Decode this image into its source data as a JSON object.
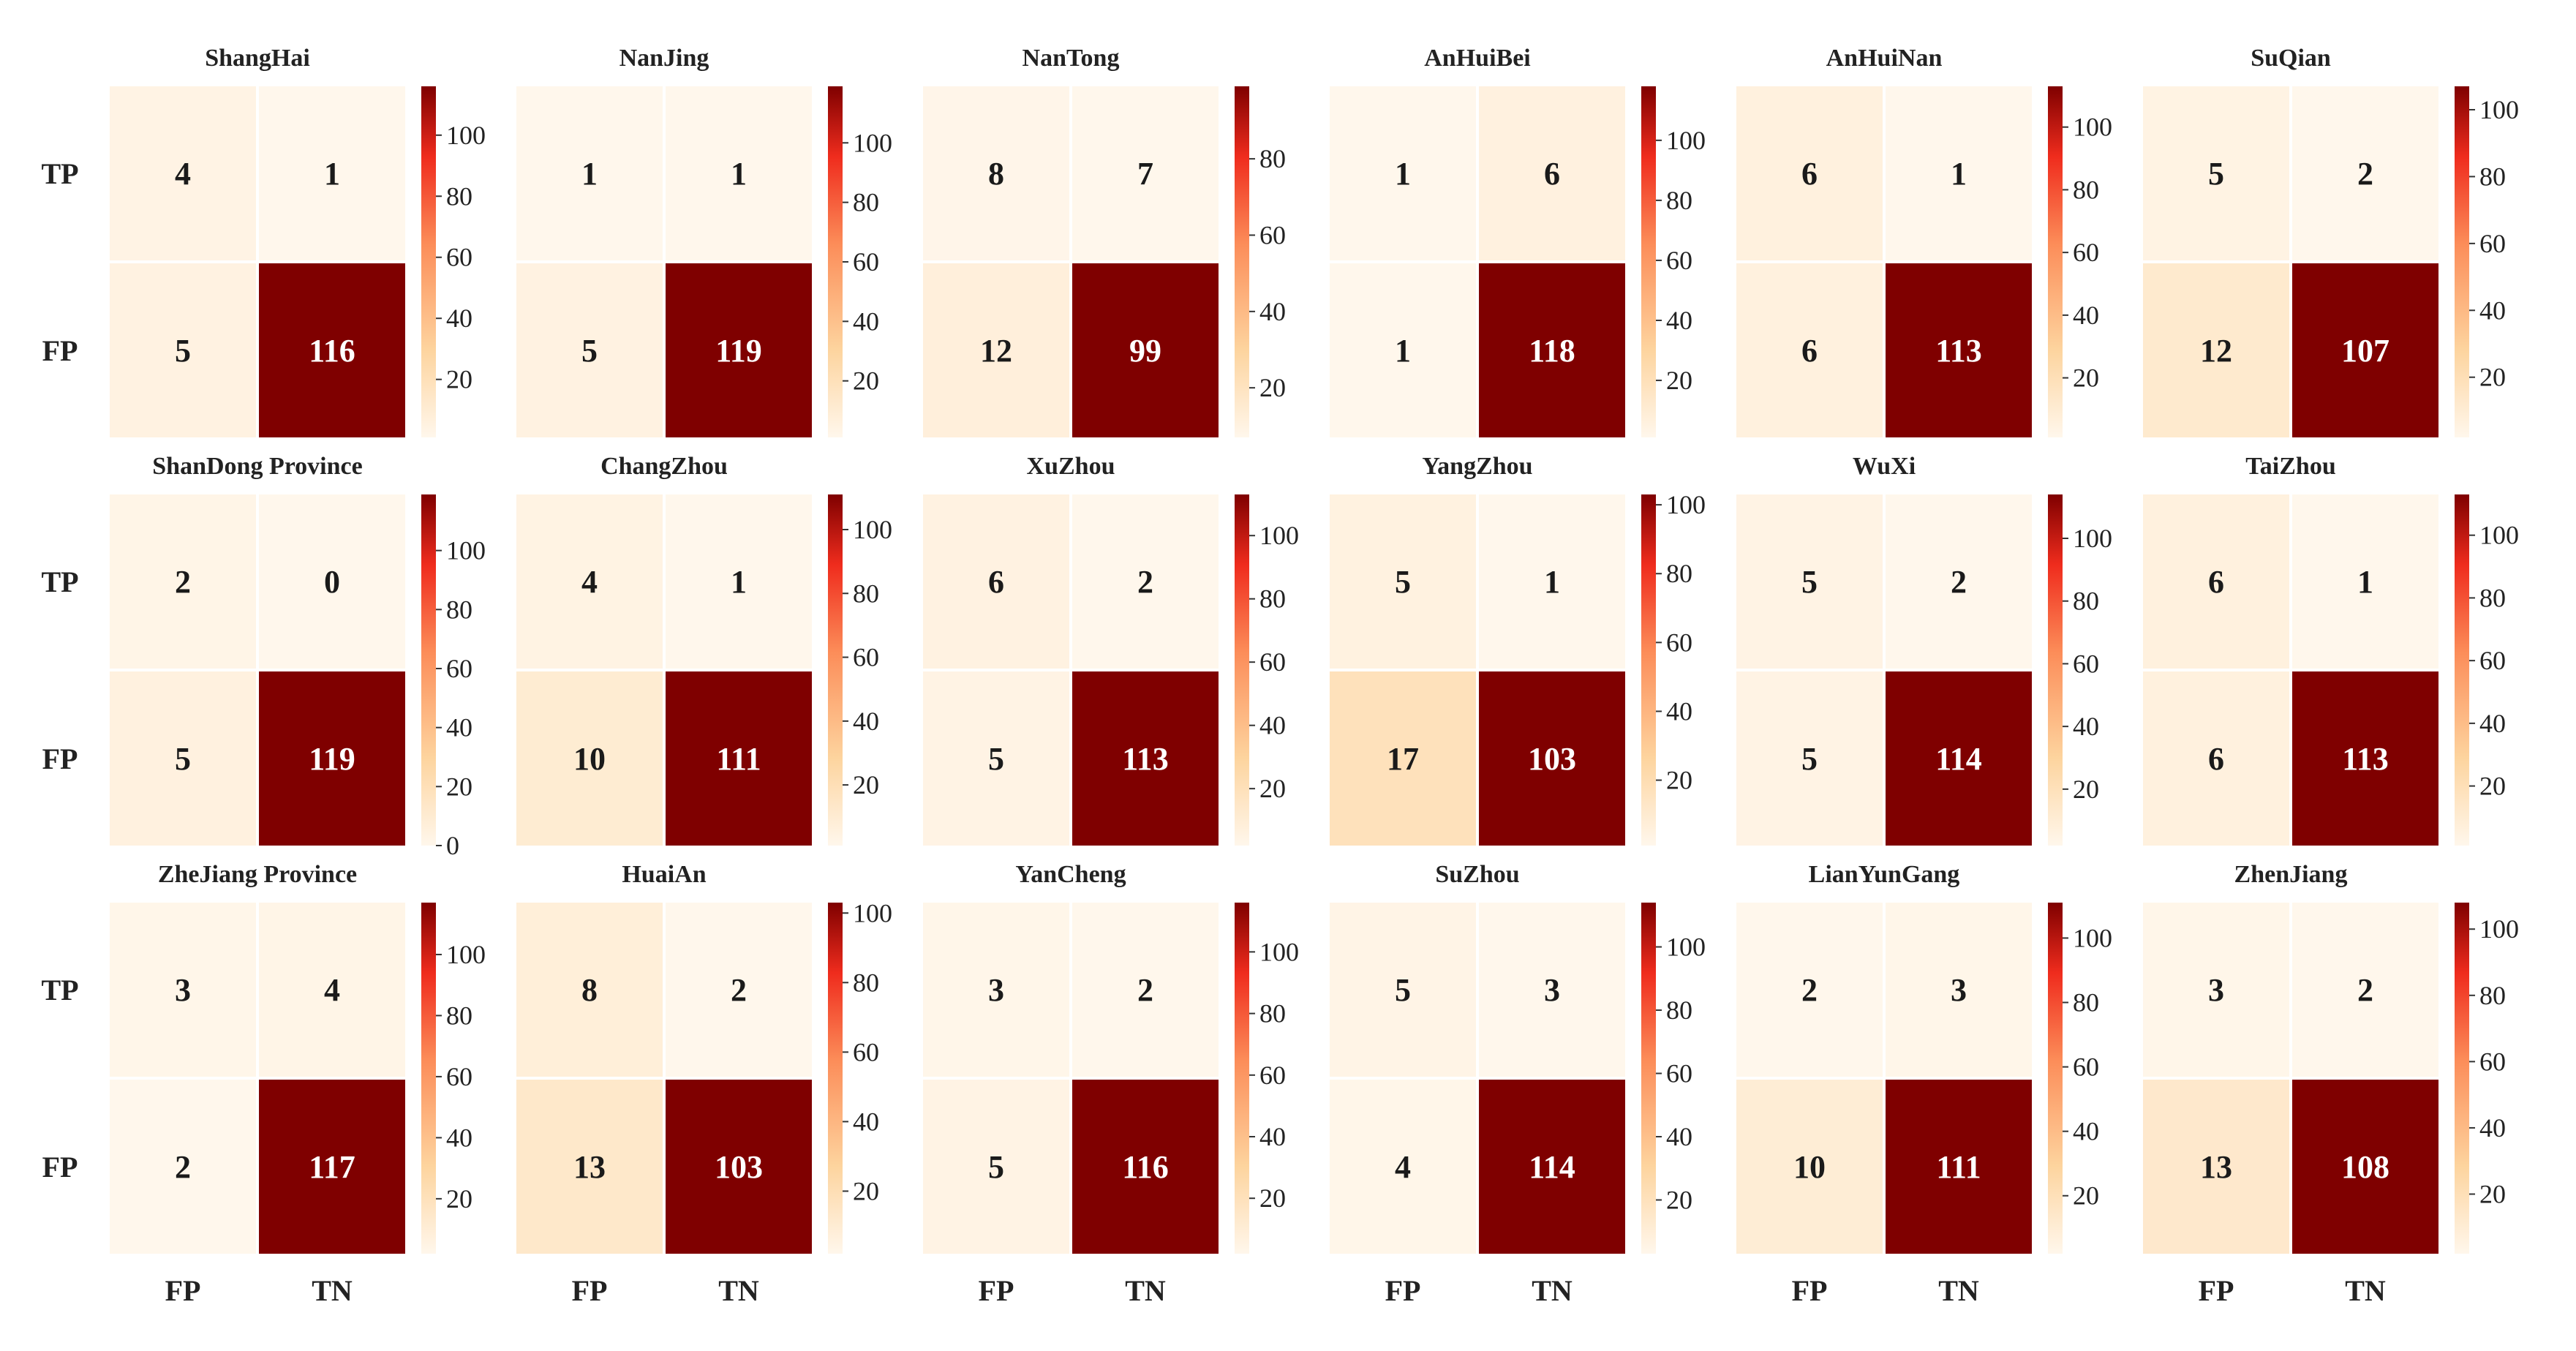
{
  "chart_data": {
    "type": "heatmap",
    "colormap": "OrRd (light cream to dark red)",
    "grid_rows": 3,
    "grid_cols": 6,
    "row_labels": [
      "TP",
      "FP"
    ],
    "col_labels": [
      "FP",
      "TN"
    ],
    "panels": [
      {
        "title": "ShangHai",
        "values": [
          [
            4,
            1
          ],
          [
            5,
            116
          ]
        ],
        "vmin": 1,
        "vmax": 116,
        "cbar_ticks": [
          20,
          40,
          60,
          80,
          100
        ]
      },
      {
        "title": "NanJing",
        "values": [
          [
            1,
            1
          ],
          [
            5,
            119
          ]
        ],
        "vmin": 1,
        "vmax": 119,
        "cbar_ticks": [
          20,
          40,
          60,
          80,
          100
        ]
      },
      {
        "title": "NanTong",
        "values": [
          [
            8,
            7
          ],
          [
            12,
            99
          ]
        ],
        "vmin": 7,
        "vmax": 99,
        "cbar_ticks": [
          20,
          40,
          60,
          80
        ]
      },
      {
        "title": "AnHuiBei",
        "values": [
          [
            1,
            6
          ],
          [
            1,
            118
          ]
        ],
        "vmin": 1,
        "vmax": 118,
        "cbar_ticks": [
          20,
          40,
          60,
          80,
          100
        ]
      },
      {
        "title": "AnHuiNan",
        "values": [
          [
            6,
            1
          ],
          [
            6,
            113
          ]
        ],
        "vmin": 1,
        "vmax": 113,
        "cbar_ticks": [
          20,
          40,
          60,
          80,
          100
        ]
      },
      {
        "title": "SuQian",
        "values": [
          [
            5,
            2
          ],
          [
            12,
            107
          ]
        ],
        "vmin": 2,
        "vmax": 107,
        "cbar_ticks": [
          20,
          40,
          60,
          80,
          100
        ]
      },
      {
        "title": "ShanDong Province",
        "values": [
          [
            2,
            0
          ],
          [
            5,
            119
          ]
        ],
        "vmin": 0,
        "vmax": 119,
        "cbar_ticks": [
          0,
          20,
          40,
          60,
          80,
          100
        ]
      },
      {
        "title": "ChangZhou",
        "values": [
          [
            4,
            1
          ],
          [
            10,
            111
          ]
        ],
        "vmin": 1,
        "vmax": 111,
        "cbar_ticks": [
          20,
          40,
          60,
          80,
          100
        ]
      },
      {
        "title": "XuZhou",
        "values": [
          [
            6,
            2
          ],
          [
            5,
            113
          ]
        ],
        "vmin": 2,
        "vmax": 113,
        "cbar_ticks": [
          20,
          40,
          60,
          80,
          100
        ]
      },
      {
        "title": "YangZhou",
        "values": [
          [
            5,
            1
          ],
          [
            17,
            103
          ]
        ],
        "vmin": 1,
        "vmax": 103,
        "cbar_ticks": [
          20,
          40,
          60,
          80,
          100
        ]
      },
      {
        "title": "WuXi",
        "values": [
          [
            5,
            2
          ],
          [
            5,
            114
          ]
        ],
        "vmin": 2,
        "vmax": 114,
        "cbar_ticks": [
          20,
          40,
          60,
          80,
          100
        ]
      },
      {
        "title": "TaiZhou",
        "values": [
          [
            6,
            1
          ],
          [
            6,
            113
          ]
        ],
        "vmin": 1,
        "vmax": 113,
        "cbar_ticks": [
          20,
          40,
          60,
          80,
          100
        ]
      },
      {
        "title": "ZheJiang Province",
        "values": [
          [
            3,
            4
          ],
          [
            2,
            117
          ]
        ],
        "vmin": 2,
        "vmax": 117,
        "cbar_ticks": [
          20,
          40,
          60,
          80,
          100
        ]
      },
      {
        "title": "HuaiAn",
        "values": [
          [
            8,
            2
          ],
          [
            13,
            103
          ]
        ],
        "vmin": 2,
        "vmax": 103,
        "cbar_ticks": [
          20,
          40,
          60,
          80,
          100
        ]
      },
      {
        "title": "YanCheng",
        "values": [
          [
            3,
            2
          ],
          [
            5,
            116
          ]
        ],
        "vmin": 2,
        "vmax": 116,
        "cbar_ticks": [
          20,
          40,
          60,
          80,
          100
        ]
      },
      {
        "title": "SuZhou",
        "values": [
          [
            5,
            3
          ],
          [
            4,
            114
          ]
        ],
        "vmin": 3,
        "vmax": 114,
        "cbar_ticks": [
          20,
          40,
          60,
          80,
          100
        ]
      },
      {
        "title": "LianYunGang",
        "values": [
          [
            2,
            3
          ],
          [
            10,
            111
          ]
        ],
        "vmin": 2,
        "vmax": 111,
        "cbar_ticks": [
          20,
          40,
          60,
          80,
          100
        ]
      },
      {
        "title": "ZhenJiang",
        "values": [
          [
            3,
            2
          ],
          [
            13,
            108
          ]
        ],
        "vmin": 2,
        "vmax": 108,
        "cbar_ticks": [
          20,
          40,
          60,
          80,
          100
        ]
      }
    ]
  },
  "colors": {
    "low": "#fff7ec",
    "mid_low": "#fdd49e",
    "mid": "#fc8d59",
    "mid_high": "#ef2c1d",
    "high": "#7f0000",
    "dark_text": "#1a1a1a",
    "light_text": "#ffffff"
  }
}
